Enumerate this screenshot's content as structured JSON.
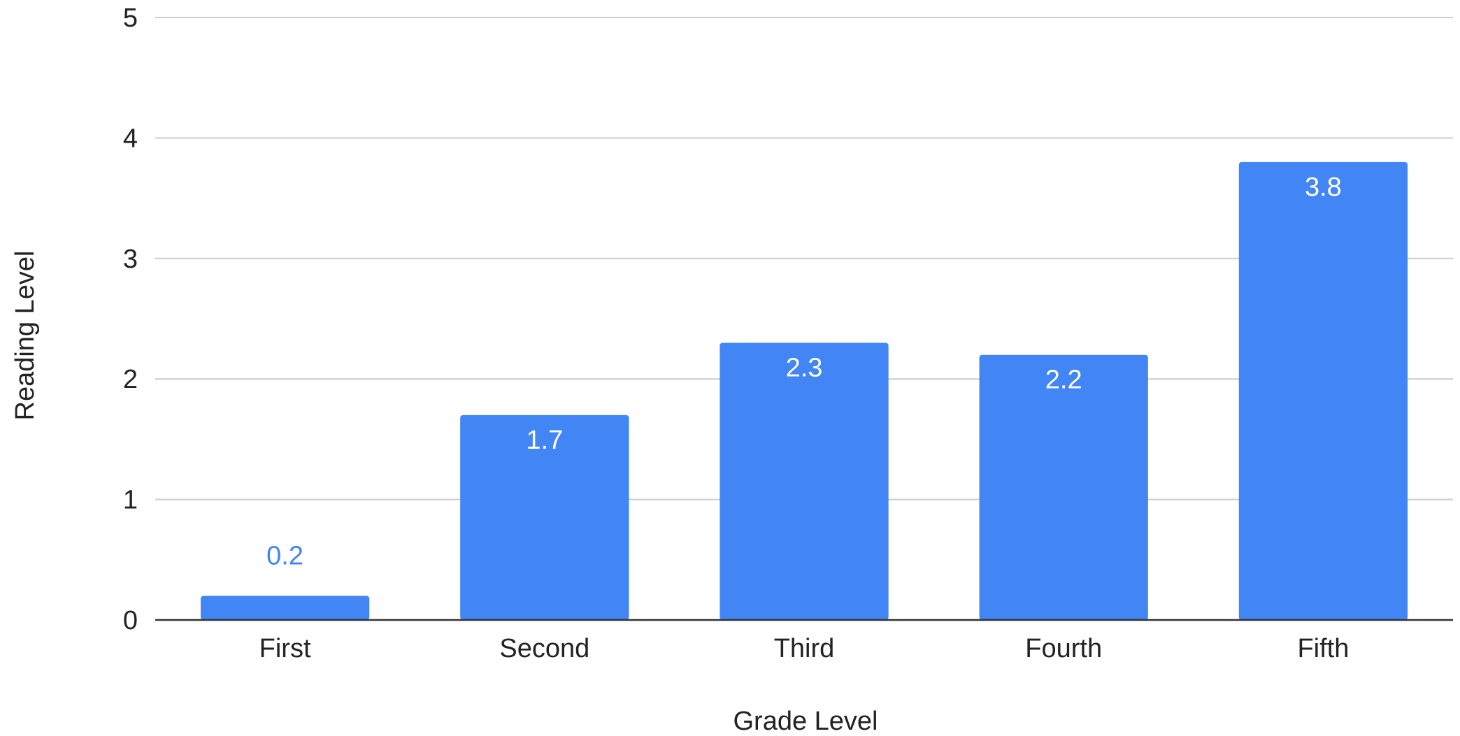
{
  "chart_data": {
    "type": "bar",
    "title": "",
    "xlabel": "Grade Level",
    "ylabel": "Reading Level",
    "categories": [
      "First",
      "Second",
      "Third",
      "Fourth",
      "Fifth"
    ],
    "values": [
      0.2,
      1.7,
      2.3,
      2.2,
      3.8
    ],
    "data_labels": [
      "0.2",
      "1.7",
      "2.3",
      "2.2",
      "3.8"
    ],
    "ylim": [
      0,
      5
    ],
    "yticks": [
      0,
      1,
      2,
      3,
      4,
      5
    ],
    "ytick_labels": [
      "0",
      "1",
      "2",
      "3",
      "4",
      "5"
    ],
    "grid": true,
    "legend": "none"
  },
  "colors": {
    "bar": "#4285f4",
    "label_inside": "#ffffff",
    "label_outside": "#4285f4",
    "grid": "#cccccc",
    "axis": "#333333",
    "text": "#222222"
  }
}
